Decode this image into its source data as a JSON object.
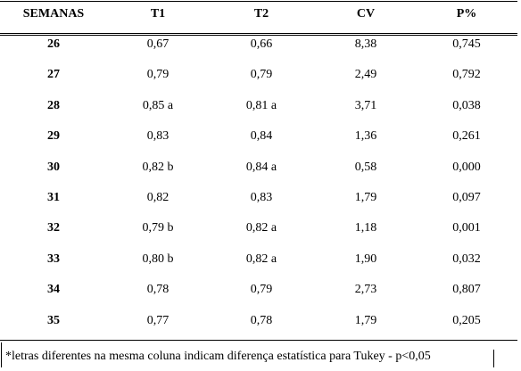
{
  "table": {
    "header": [
      "SEMANAS",
      "T1",
      "T2",
      "CV",
      "P%"
    ],
    "rows": [
      [
        "26",
        "0,67",
        "0,66",
        "8,38",
        "0,745"
      ],
      [
        "27",
        "0,79",
        "0,79",
        "2,49",
        "0,792"
      ],
      [
        "28",
        "0,85 a",
        "0,81 a",
        "3,71",
        "0,038"
      ],
      [
        "29",
        "0,83",
        "0,84",
        "1,36",
        "0,261"
      ],
      [
        "30",
        "0,82 b",
        "0,84 a",
        "0,58",
        "0,000"
      ],
      [
        "31",
        "0,82",
        "0,83",
        "1,79",
        "0,097"
      ],
      [
        "32",
        "0,79 b",
        "0,82 a",
        "1,18",
        "0,001"
      ],
      [
        "33",
        "0,80 b",
        "0,82 a",
        "1,90",
        "0,032"
      ],
      [
        "34",
        "0,78",
        "0,79",
        "2,73",
        "0,807"
      ],
      [
        "35",
        "0,77",
        "0,78",
        "1,79",
        "0,205"
      ]
    ]
  },
  "footnote": "*letras diferentes na mesma coluna indicam diferença estatística para Tukey - p<0,05"
}
